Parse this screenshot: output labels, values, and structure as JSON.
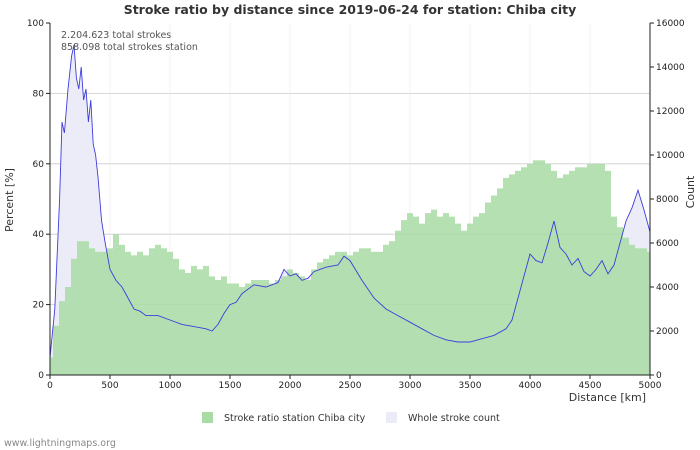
{
  "chart_data": {
    "type": "bar",
    "title": "Stroke ratio by distance since 2019-06-24 for station: Chiba city",
    "xlabel": "Distance   [km]",
    "ylabel_left": "Percent   [%]",
    "ylabel_right": "Count",
    "xlim": [
      0,
      5000
    ],
    "ylim_left": [
      0,
      100
    ],
    "ylim_right": [
      0,
      16000
    ],
    "x_ticks": [
      "0",
      "500",
      "1000",
      "1500",
      "2000",
      "2500",
      "3000",
      "3500",
      "4000",
      "4500",
      "5000"
    ],
    "y_left_ticks": [
      "0",
      "20",
      "40",
      "60",
      "80",
      "100"
    ],
    "y_right_ticks": [
      "0",
      "2000",
      "4000",
      "6000",
      "8000",
      "10000",
      "12000",
      "14000",
      "16000"
    ],
    "annotations": [
      "2.204.623 total strokes",
      "858.098 total strokes station"
    ],
    "legend": [
      {
        "name": "Stroke ratio station Chiba city",
        "color": "#a8dca4"
      },
      {
        "name": "Whole stroke count",
        "color": "#ececf8"
      }
    ],
    "colors": {
      "bars": "#a8dca4",
      "bars_edge": "#8fcf8b",
      "area": "#ececf8",
      "line": "#3d3ddb",
      "grid": "#cccccc"
    },
    "series": [
      {
        "name": "Stroke ratio station Chiba city",
        "unit": "percent",
        "x": [
          0,
          50,
          100,
          150,
          200,
          250,
          300,
          350,
          400,
          450,
          500,
          550,
          600,
          650,
          700,
          750,
          800,
          850,
          900,
          950,
          1000,
          1050,
          1100,
          1150,
          1200,
          1250,
          1300,
          1350,
          1400,
          1450,
          1500,
          1550,
          1600,
          1650,
          1700,
          1750,
          1800,
          1850,
          1900,
          1950,
          2000,
          2050,
          2100,
          2150,
          2200,
          2250,
          2300,
          2350,
          2400,
          2450,
          2500,
          2550,
          2600,
          2650,
          2700,
          2750,
          2800,
          2850,
          2900,
          2950,
          3000,
          3050,
          3100,
          3150,
          3200,
          3250,
          3300,
          3350,
          3400,
          3450,
          3500,
          3550,
          3600,
          3650,
          3700,
          3750,
          3800,
          3850,
          3900,
          3950,
          4000,
          4050,
          4100,
          4150,
          4200,
          4250,
          4300,
          4350,
          4400,
          4450,
          4500,
          4550,
          4600,
          4650,
          4700,
          4750,
          4800,
          4850,
          4900,
          4950,
          5000
        ],
        "values": [
          5,
          14,
          21,
          25,
          33,
          38,
          38,
          36,
          35,
          35,
          36,
          40,
          37,
          35,
          34,
          35,
          34,
          36,
          37,
          36,
          35,
          33,
          30,
          29,
          31,
          30,
          31,
          28,
          27,
          28,
          26,
          26,
          25,
          26,
          27,
          27,
          27,
          26,
          27,
          28,
          30,
          29,
          28,
          27,
          30,
          32,
          33,
          34,
          35,
          35,
          34,
          35,
          36,
          36,
          35,
          35,
          37,
          38,
          41,
          44,
          46,
          45,
          43,
          46,
          47,
          45,
          46,
          45,
          43,
          41,
          43,
          45,
          46,
          49,
          51,
          53,
          56,
          57,
          58,
          59,
          60,
          61,
          61,
          60,
          58,
          56,
          57,
          58,
          59,
          59,
          60,
          60,
          60,
          58,
          45,
          42,
          39,
          37,
          36,
          36,
          35
        ]
      },
      {
        "name": "Whole stroke count",
        "unit": "strokes",
        "x": [
          0,
          40,
          80,
          100,
          120,
          150,
          180,
          200,
          220,
          240,
          260,
          280,
          300,
          320,
          340,
          360,
          380,
          400,
          430,
          460,
          500,
          550,
          600,
          650,
          700,
          750,
          800,
          900,
          1000,
          1100,
          1200,
          1300,
          1350,
          1400,
          1450,
          1500,
          1550,
          1600,
          1700,
          1800,
          1900,
          1950,
          2000,
          2050,
          2100,
          2150,
          2200,
          2300,
          2400,
          2450,
          2500,
          2600,
          2700,
          2800,
          2900,
          3000,
          3100,
          3200,
          3300,
          3400,
          3500,
          3600,
          3700,
          3800,
          3850,
          3900,
          3950,
          4000,
          4050,
          4100,
          4150,
          4200,
          4250,
          4300,
          4350,
          4400,
          4450,
          4500,
          4550,
          4600,
          4650,
          4700,
          4750,
          4800,
          4850,
          4900,
          4950,
          5000
        ],
        "values": [
          800,
          3000,
          8000,
          11500,
          11000,
          13000,
          14500,
          15000,
          13500,
          13000,
          14000,
          12500,
          13000,
          11500,
          12500,
          10500,
          10000,
          9000,
          7000,
          6000,
          4800,
          4300,
          4000,
          3500,
          3000,
          2900,
          2700,
          2700,
          2500,
          2300,
          2200,
          2100,
          2000,
          2300,
          2800,
          3200,
          3300,
          3700,
          4100,
          4000,
          4200,
          4800,
          4500,
          4600,
          4300,
          4400,
          4700,
          4900,
          5000,
          5400,
          5200,
          4300,
          3500,
          3000,
          2700,
          2400,
          2100,
          1800,
          1600,
          1500,
          1500,
          1650,
          1800,
          2100,
          2500,
          3500,
          4500,
          5500,
          5200,
          5100,
          6000,
          7000,
          5800,
          5500,
          5000,
          5300,
          4700,
          4500,
          4800,
          5200,
          4600,
          5000,
          6000,
          7000,
          7600,
          8400,
          7500,
          6500
        ]
      }
    ]
  },
  "footer": "www.lightningmaps.org"
}
